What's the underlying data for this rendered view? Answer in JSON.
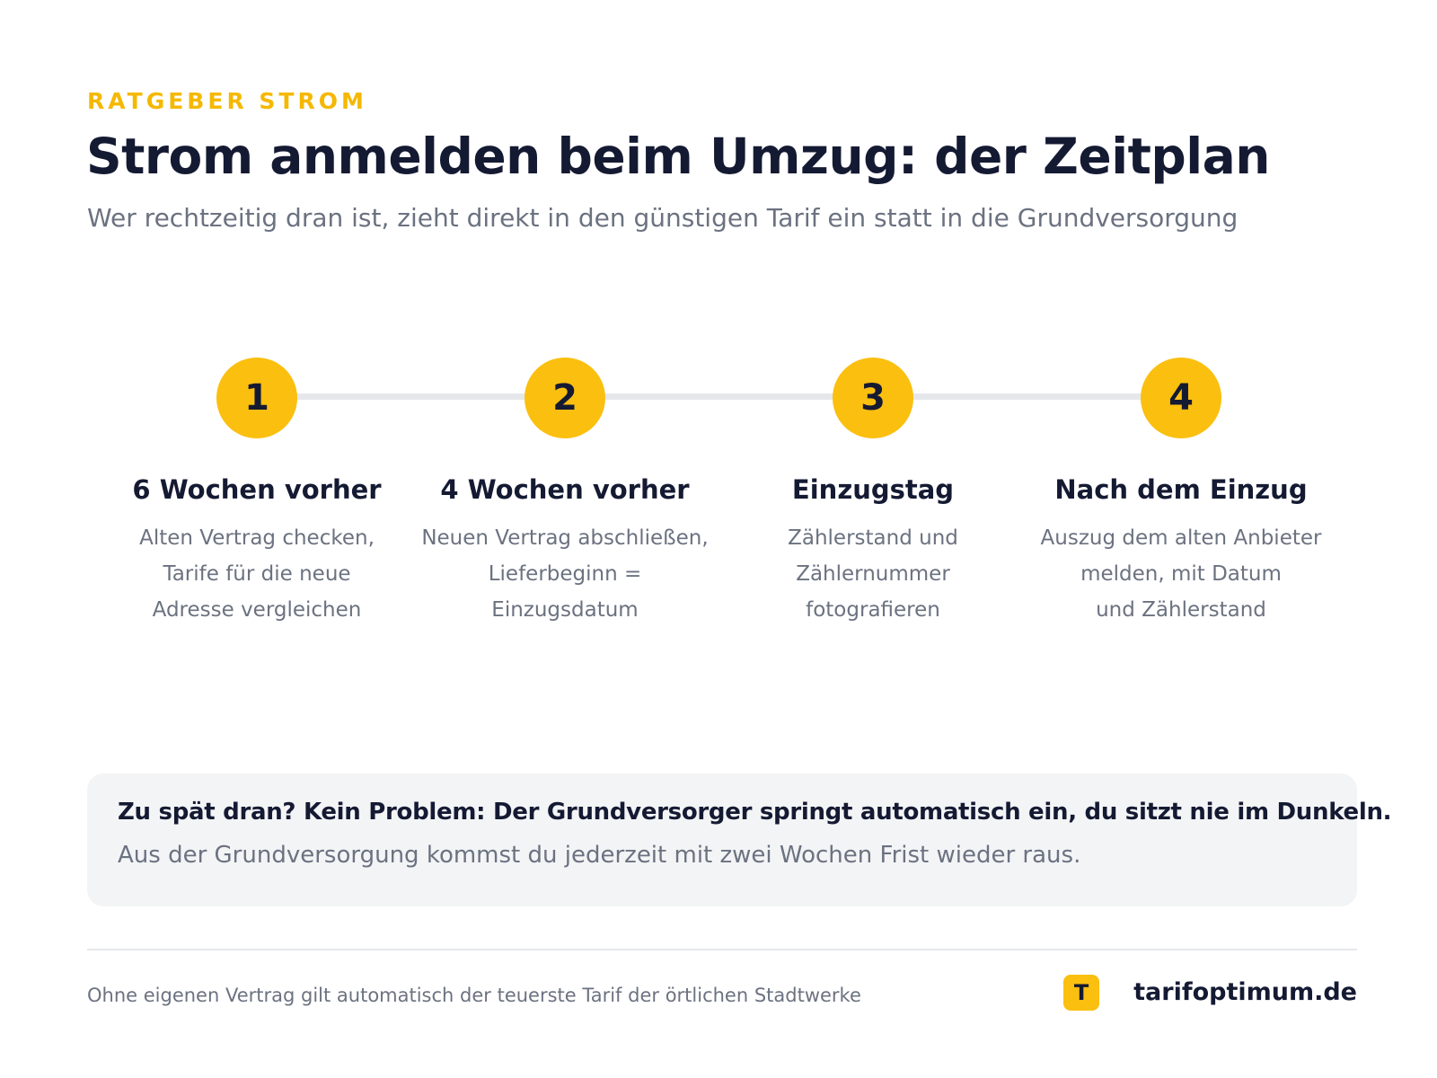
{
  "header": {
    "eyebrow": "RATGEBER STROM",
    "title": "Strom anmelden beim Umzug: der Zeitplan",
    "subtitle": "Wer rechtzeitig dran ist, zieht direkt in den günstigen Tarif ein statt in die Grundversorgung"
  },
  "steps": [
    {
      "number": "1",
      "title": "6 Wochen vorher",
      "description": "Alten Vertrag checken,\nTarife für die neue\nAdresse vergleichen"
    },
    {
      "number": "2",
      "title": "4 Wochen vorher",
      "description": "Neuen Vertrag abschließen,\nLieferbeginn =\nEinzugsdatum"
    },
    {
      "number": "3",
      "title": "Einzugstag",
      "description": "Zählerstand und\nZählernummer\nfotografieren"
    },
    {
      "number": "4",
      "title": "Nach dem Einzug",
      "description": "Auszug dem alten Anbieter\nmelden, mit Datum\nund Zählerstand"
    }
  ],
  "note": {
    "headline": "Zu spät dran? Kein Problem: Der Grundversorger springt automatisch ein, du sitzt nie im Dunkeln.",
    "text": "Aus der Grundversorgung kommst du jederzeit mit zwei Wochen Frist wieder raus."
  },
  "footer": {
    "note": "Ohne eigenen Vertrag gilt automatisch der teuerste Tarif der örtlichen Stadtwerke",
    "logo_letter": "T",
    "brand": "tarifoptimum.de"
  },
  "colors": {
    "accent": "#fbbf0f",
    "eyebrow": "#f5b800",
    "text_dark": "#151a33",
    "text_muted": "#6b7280",
    "panel_bg": "#f3f4f6",
    "line": "#e5e7eb"
  }
}
